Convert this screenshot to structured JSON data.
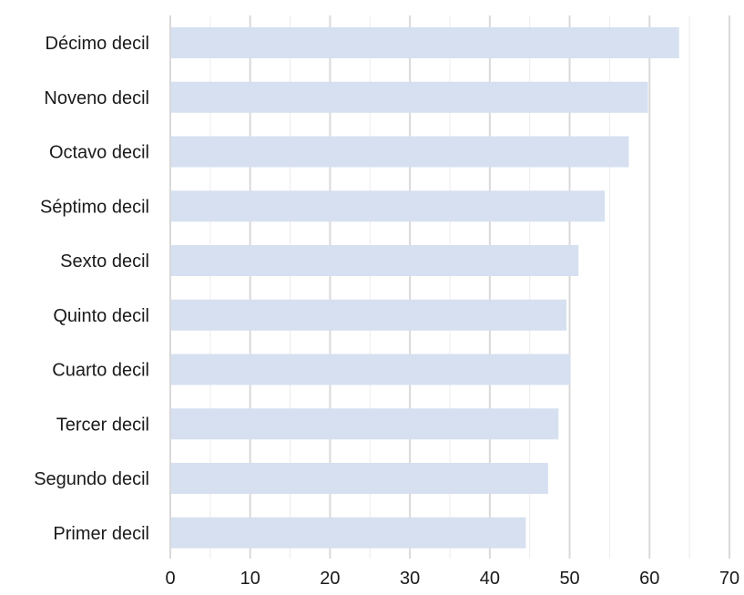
{
  "chart_data": {
    "type": "bar",
    "orientation": "horizontal",
    "categories": [
      "Décimo decil",
      "Noveno decil",
      "Octavo decil",
      "Séptimo decil",
      "Sexto decil",
      "Quinto decil",
      "Cuarto decil",
      "Tercer decil",
      "Segundo decil",
      "Primer decil"
    ],
    "values": [
      63.7,
      59.8,
      57.4,
      54.4,
      51.1,
      49.6,
      50.1,
      48.6,
      47.3,
      44.5
    ],
    "title": "",
    "xlabel": "",
    "ylabel": "",
    "xlim": [
      0,
      70
    ],
    "xticks": [
      0,
      10,
      20,
      30,
      40,
      50,
      60,
      70
    ],
    "xtick_labels": [
      "0",
      "10",
      "20",
      "30",
      "40",
      "50",
      "60",
      "70"
    ],
    "minor_grid_step": 5,
    "grid": true,
    "legend": "none",
    "bar_color": "#d6e0f0",
    "grid_color": "#d9d9d9",
    "text_color": "#1a1a1a"
  }
}
